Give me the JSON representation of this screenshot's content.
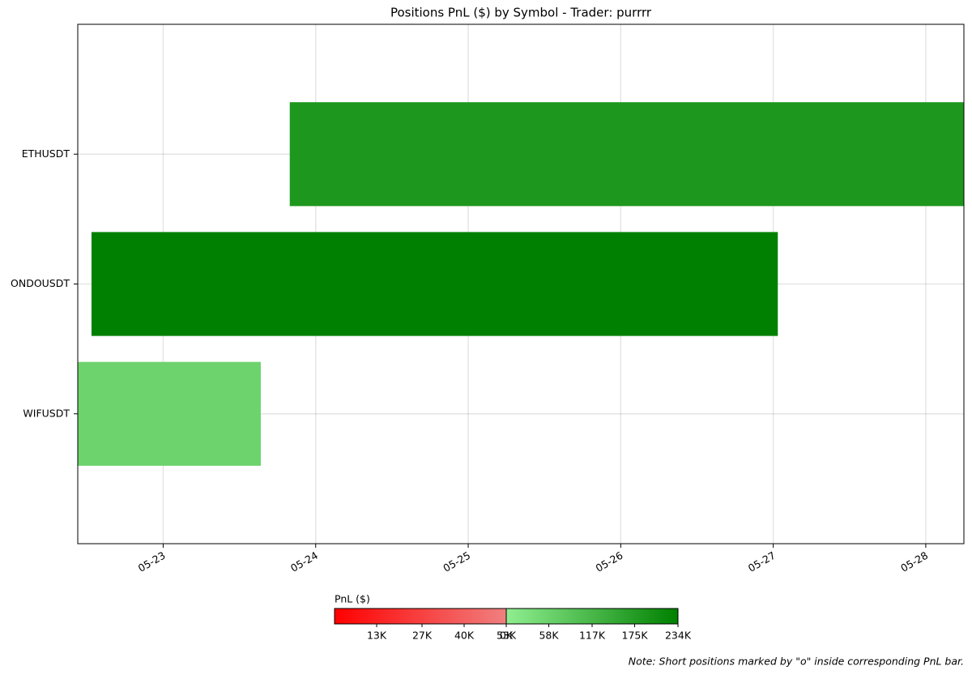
{
  "chart_data": {
    "type": "timeline",
    "title": "Positions PnL ($) by Symbol - Trader: purrrr",
    "categories": [
      "ETHUSDT",
      "ONDOUSDT",
      "WIFUSDT"
    ],
    "start": [
      23.83,
      22.53,
      22.44
    ],
    "end": [
      28.25,
      27.03,
      23.64
    ],
    "values": [
      185000,
      234000,
      57000
    ],
    "xlim": [
      22.44,
      28.25
    ],
    "xticks": [
      {
        "value": 23,
        "label": "05-23"
      },
      {
        "value": 24,
        "label": "05-24"
      },
      {
        "value": 25,
        "label": "05-25"
      },
      {
        "value": 26,
        "label": "05-26"
      },
      {
        "value": 27,
        "label": "05-27"
      },
      {
        "value": 28,
        "label": "05-28"
      }
    ],
    "grid": true,
    "colorbar": {
      "label": "PnL ($)",
      "segments": [
        {
          "colors": [
            "#ff0000",
            "#f08080"
          ],
          "lim": [
            0,
            53000
          ],
          "ticks": [
            {
              "value": 13000,
              "label": "13K"
            },
            {
              "value": 27000,
              "label": "27K"
            },
            {
              "value": 40000,
              "label": "40K"
            },
            {
              "value": 53000,
              "label": "53K"
            }
          ]
        },
        {
          "colors": [
            "#90ee90",
            "#008000"
          ],
          "lim": [
            0,
            234000
          ],
          "ticks": [
            {
              "value": 0,
              "label": "0K"
            },
            {
              "value": 58000,
              "label": "58K"
            },
            {
              "value": 117000,
              "label": "117K"
            },
            {
              "value": 175000,
              "label": "175K"
            },
            {
              "value": 234000,
              "label": "234K"
            }
          ]
        }
      ]
    },
    "note": "Note: Short positions marked by \"o\" inside corresponding PnL bar."
  }
}
